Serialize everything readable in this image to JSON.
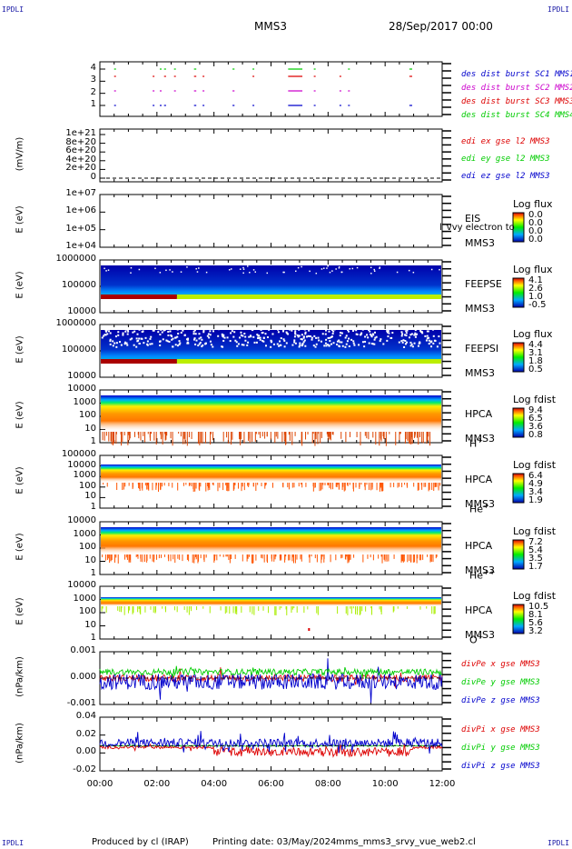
{
  "header": {
    "corner_tl": "IPDLI",
    "corner_tr": "IPDLI",
    "corner_bl": "IPDLI",
    "corner_br": "IPDLI",
    "spacecraft": "MMS3",
    "date": "28/Sep/2017 00:00"
  },
  "footer": {
    "produced": "Produced by cl (IRAP)",
    "printing": "Printing date: 03/May/2024",
    "file": "mms_mms3_srvy_vue_web2.cl"
  },
  "colors": {
    "red": "#dd0000",
    "green": "#00cc00",
    "blue": "#0000cc",
    "magenta": "#cc00cc"
  },
  "chart_data": {
    "type": "multi-panel time series",
    "x_ticks": [
      "00:00",
      "02:00",
      "04:00",
      "06:00",
      "08:00",
      "10:00",
      "12:00"
    ],
    "x_range_hours": [
      0,
      12
    ],
    "panels": [
      {
        "id": "burst",
        "type": "scatter",
        "ylabel": "",
        "yticks": [
          "4",
          "3",
          "2",
          "1"
        ],
        "series": [
          {
            "name": "des dist burst SC1 MMS1",
            "color": "#0000cc",
            "level": 1
          },
          {
            "name": "des dist burst SC2 MMS2",
            "color": "#cc00cc",
            "level": 2
          },
          {
            "name": "des dist burst SC3 MMS3",
            "color": "#dd0000",
            "level": 3
          },
          {
            "name": "des dist burst SC4 MMS4",
            "color": "#00cc00",
            "level": 4
          }
        ],
        "segments_hours": [
          [
            0.5,
            0.55
          ],
          [
            1.85,
            1.9
          ],
          [
            2.1,
            2.15
          ],
          [
            2.25,
            2.32
          ],
          [
            2.6,
            2.64
          ],
          [
            3.3,
            3.38
          ],
          [
            3.6,
            3.65
          ],
          [
            4.65,
            4.72
          ],
          [
            5.35,
            5.4
          ],
          [
            6.6,
            7.1
          ],
          [
            7.5,
            7.55
          ],
          [
            8.4,
            8.45
          ],
          [
            8.7,
            8.75
          ],
          [
            10.85,
            10.95
          ]
        ]
      },
      {
        "id": "edi",
        "type": "line",
        "ylabel": "(mV/m)",
        "yticks": [
          "1e+21",
          "8e+20",
          "6e+20",
          "4e+20",
          "2e+20",
          "0"
        ],
        "series": [
          {
            "name": "edi ex gse l2 MMS3",
            "color": "#dd0000"
          },
          {
            "name": "edi ey gse l2 MMS3",
            "color": "#00cc00"
          },
          {
            "name": "edi ez gse l2 MMS3",
            "color": "#0000cc"
          }
        ]
      },
      {
        "id": "eis",
        "type": "heatmap",
        "ylabel": "E (eV)",
        "yticks": [
          "1e+07",
          "1e+06",
          "1e+05",
          "1e+04"
        ],
        "label_lines": [
          "EIS",
          "MMS3"
        ],
        "overlay_text": "l_vvy electron to",
        "colorbar_title": "Log flux",
        "colorbar_values": [
          "0.0",
          "0.0",
          "0.0",
          "0.0"
        ]
      },
      {
        "id": "feepse",
        "type": "heatmap",
        "ylabel": "E (eV)",
        "yticks": [
          "1000000",
          "100000",
          "10000"
        ],
        "label_lines": [
          "FEEPSE",
          "MMS3"
        ],
        "colorbar_title": "Log flux",
        "colorbar_values": [
          "4.1",
          "2.6",
          "1.0",
          "-0.5"
        ]
      },
      {
        "id": "feepsi",
        "type": "heatmap",
        "ylabel": "E (eV)",
        "yticks": [
          "1000000",
          "100000",
          "10000"
        ],
        "label_lines": [
          "FEEPSI",
          "MMS3"
        ],
        "colorbar_title": "Log flux",
        "colorbar_values": [
          "4.4",
          "3.1",
          "1.8",
          "0.5"
        ]
      },
      {
        "id": "hpca_h",
        "type": "heatmap",
        "ylabel": "E (eV)",
        "yticks": [
          "10000",
          "1000",
          "100",
          "10",
          "1"
        ],
        "label_lines": [
          "HPCA",
          "MMS3"
        ],
        "species": "H",
        "species_sup": "+",
        "colorbar_title": "Log fdist",
        "colorbar_values": [
          "9.4",
          "6.5",
          "3.6",
          "0.8"
        ]
      },
      {
        "id": "hpca_he",
        "type": "heatmap",
        "ylabel": "E (eV)",
        "yticks": [
          "100000",
          "10000",
          "1000",
          "100",
          "10",
          "1"
        ],
        "label_lines": [
          "HPCA",
          "MMS3"
        ],
        "species": "He",
        "species_sup": "+",
        "colorbar_title": "Log fdist",
        "colorbar_values": [
          "6.4",
          "4.9",
          "3.4",
          "1.9"
        ]
      },
      {
        "id": "hpca_hepp",
        "type": "heatmap",
        "ylabel": "E (eV)",
        "yticks": [
          "10000",
          "1000",
          "100",
          "10",
          "1"
        ],
        "label_lines": [
          "HPCA",
          "MMS3"
        ],
        "species": "He",
        "species_sup": "++",
        "colorbar_title": "Log fdist",
        "colorbar_values": [
          "7.2",
          "5.4",
          "3.5",
          "1.7"
        ]
      },
      {
        "id": "hpca_o",
        "type": "heatmap",
        "ylabel": "E (eV)",
        "yticks": [
          "10000",
          "1000",
          "100",
          "10",
          "1"
        ],
        "label_lines": [
          "HPCA",
          "MMS3"
        ],
        "species": "O",
        "species_sup": "+",
        "colorbar_title": "Log fdist",
        "colorbar_values": [
          "10.5",
          "8.1",
          "5.6",
          "3.2"
        ]
      },
      {
        "id": "divpe",
        "type": "line",
        "ylabel": "(nPa/km)",
        "yticks": [
          "0.001",
          "0.000",
          "-0.001"
        ],
        "ylim": [
          -0.0015,
          0.0015
        ],
        "series": [
          {
            "name": "divPe x gse MMS3",
            "color": "#dd0000"
          },
          {
            "name": "divPe y gse MMS3",
            "color": "#00cc00"
          },
          {
            "name": "divPe z gse MMS3",
            "color": "#0000cc"
          }
        ]
      },
      {
        "id": "divpi",
        "type": "line",
        "ylabel": "(nPa/km)",
        "yticks": [
          "0.04",
          "0.02",
          "0.00",
          "-0.02"
        ],
        "ylim": [
          -0.035,
          0.04
        ],
        "series": [
          {
            "name": "divPi x gse MMS3",
            "color": "#dd0000"
          },
          {
            "name": "divPi y gse MMS3",
            "color": "#00cc00"
          },
          {
            "name": "divPi z gse MMS3",
            "color": "#0000cc"
          }
        ]
      }
    ]
  }
}
